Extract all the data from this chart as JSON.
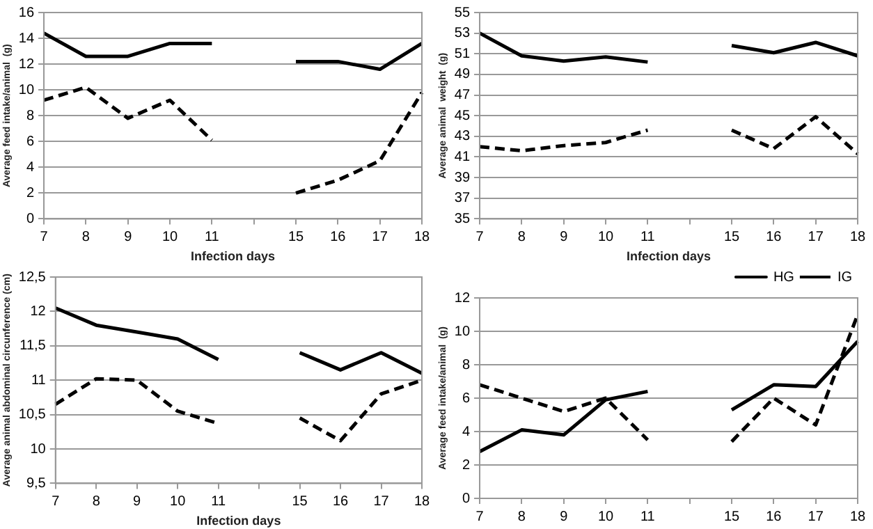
{
  "chart_data": [
    {
      "type": "line",
      "ylabel": "Average feed intake/animal  (g)",
      "xlabel": "Infection days",
      "categories": [
        "7",
        "8",
        "9",
        "10",
        "11",
        null,
        "15",
        "16",
        "17",
        "18"
      ],
      "ylim": [
        0,
        16
      ],
      "yticks": [
        0,
        2,
        4,
        6,
        8,
        10,
        12,
        14,
        16
      ],
      "grid": "y",
      "legend": false,
      "marker": "none",
      "series": [
        {
          "color": "#000000",
          "line_style": "solid",
          "values": [
            14.4,
            12.6,
            12.6,
            13.6,
            13.6,
            null,
            12.2,
            12.2,
            11.6,
            13.6
          ]
        },
        {
          "color": "#000000",
          "line_style": "dashed",
          "values": [
            9.2,
            10.2,
            7.8,
            9.2,
            6.1,
            null,
            2,
            3,
            4.5,
            9.8
          ]
        }
      ]
    },
    {
      "type": "line",
      "ylabel": "Average animal  weight  (g)",
      "xlabel": "Infection days",
      "categories": [
        "7",
        "8",
        "9",
        "10",
        "11",
        null,
        "15",
        "16",
        "17",
        "18"
      ],
      "ylim": [
        35,
        55
      ],
      "yticks": [
        35,
        37,
        39,
        41,
        43,
        45,
        47,
        49,
        51,
        53,
        55
      ],
      "grid": "y",
      "legend": false,
      "marker": "none",
      "series": [
        {
          "color": "#000000",
          "line_style": "solid",
          "values": [
            53,
            50.8,
            50.3,
            50.7,
            50.2,
            null,
            51.8,
            51.1,
            52.1,
            50.8
          ]
        },
        {
          "color": "#000000",
          "line_style": "dashed",
          "values": [
            42,
            41.6,
            42.1,
            42.4,
            43.6,
            null,
            43.6,
            41.8,
            44.9,
            41.3
          ]
        }
      ]
    },
    {
      "type": "line",
      "ylabel": "Average animal abdominal circunference (cm)",
      "xlabel": "Infection days",
      "categories": [
        "7",
        "8",
        "9",
        "10",
        "11",
        null,
        "15",
        "16",
        "17",
        "18"
      ],
      "ylim": [
        9.5,
        12.5
      ],
      "yticks": [
        {
          "value": 9.5,
          "label": "9,5"
        },
        10,
        {
          "value": 10.5,
          "label": "10,5"
        },
        11,
        {
          "value": 11.5,
          "label": "11,5"
        },
        12,
        {
          "value": 12.5,
          "label": "12,5"
        }
      ],
      "grid": "y",
      "legend": false,
      "marker": "none",
      "series": [
        {
          "color": "#000000",
          "line_style": "solid",
          "values": [
            12.05,
            11.8,
            11.7,
            11.6,
            11.3,
            null,
            11.4,
            11.15,
            11.4,
            11.1
          ]
        },
        {
          "color": "#000000",
          "line_style": "dashed",
          "values": [
            10.65,
            11.02,
            11,
            10.55,
            10.37,
            null,
            10.45,
            10.12,
            10.8,
            11
          ]
        }
      ]
    },
    {
      "type": "line",
      "ylabel": "Average feed intake/animal  (g)",
      "categories": [
        "7",
        "8",
        "9",
        "10",
        "11",
        null,
        "15",
        "16",
        "17",
        "18"
      ],
      "ylim": [
        0,
        12
      ],
      "yticks": [
        0,
        2,
        4,
        6,
        8,
        10,
        12
      ],
      "grid": "y",
      "legend": "top right",
      "marker": "none",
      "series": [
        {
          "name": "HG",
          "color": "#000000",
          "line_style": "solid",
          "values": [
            2.8,
            4.1,
            3.8,
            5.9,
            6.4,
            null,
            5.3,
            6.8,
            6.7,
            9.4
          ]
        },
        {
          "name": "IG",
          "color": "#000000",
          "line_style": "dashed",
          "values": [
            6.8,
            6,
            5.2,
            6,
            3.5,
            null,
            3.4,
            6,
            4.4,
            11
          ]
        }
      ]
    }
  ]
}
